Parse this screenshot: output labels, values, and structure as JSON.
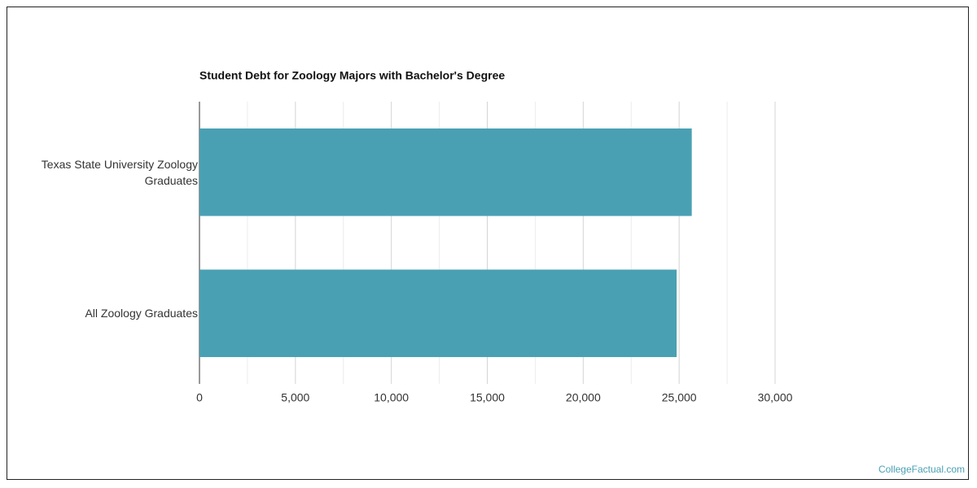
{
  "chart_data": {
    "type": "hbar",
    "title": "Student Debt for Zoology Majors with Bachelor's Degree",
    "categories": [
      "Texas State University Zoology Graduates",
      "All Zoology Graduates"
    ],
    "values": [
      25657,
      24870
    ],
    "color": "#4aa0b3",
    "xlim": [
      0,
      30000
    ],
    "xticks": [
      0,
      {
        "value": 5000,
        "label": "5,000"
      },
      {
        "value": 10000,
        "label": "10,000"
      },
      {
        "value": 15000,
        "label": "15,000"
      },
      {
        "value": 20000,
        "label": "20,000"
      },
      {
        "value": 25000,
        "label": "25,000"
      },
      {
        "value": 30000,
        "label": "30,000"
      }
    ],
    "minor_xticks": [
      2500,
      7500,
      12500,
      17500,
      22500,
      27500
    ],
    "grid": true
  },
  "footer": {
    "credit": "CollegeFactual.com"
  }
}
